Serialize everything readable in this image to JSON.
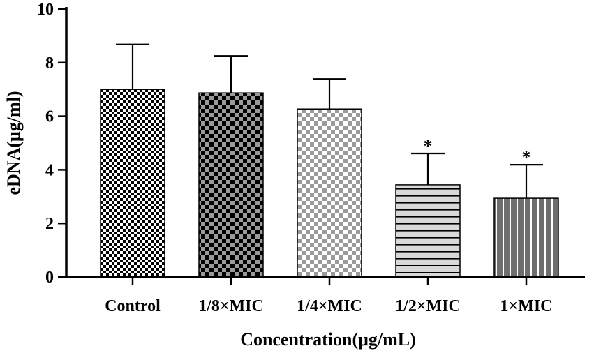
{
  "chart_data": {
    "type": "bar",
    "categories": [
      "Control",
      "1/8×MIC",
      "1/4×MIC",
      "1/2×MIC",
      "1×MIC"
    ],
    "values": [
      7.0,
      6.87,
      6.27,
      3.44,
      2.94
    ],
    "errors": [
      1.68,
      1.38,
      1.12,
      1.17,
      1.25
    ],
    "significance": [
      "",
      "",
      "",
      "*",
      "*"
    ],
    "xlabel": "Concentration(μg/mL)",
    "ylabel": "eDNA(μg/ml)",
    "ylim": [
      0,
      10
    ],
    "yticks": [
      "0",
      "2",
      "4",
      "6",
      "8",
      "10"
    ],
    "grid": false,
    "legend": "none",
    "fills": [
      {
        "pattern": "checker-fine",
        "color": "#000000",
        "background": "#ffffff"
      },
      {
        "pattern": "checker",
        "color": "#000000",
        "background": "#9a9a9a"
      },
      {
        "pattern": "checker",
        "color": "#9a9a9a",
        "background": "#ffffff"
      },
      {
        "pattern": "horizontal-stripes",
        "color": "#000000",
        "background": "#d8d8d8"
      },
      {
        "pattern": "vertical-stripes",
        "color": "#ffffff",
        "background": "#6e6e6e"
      }
    ]
  }
}
